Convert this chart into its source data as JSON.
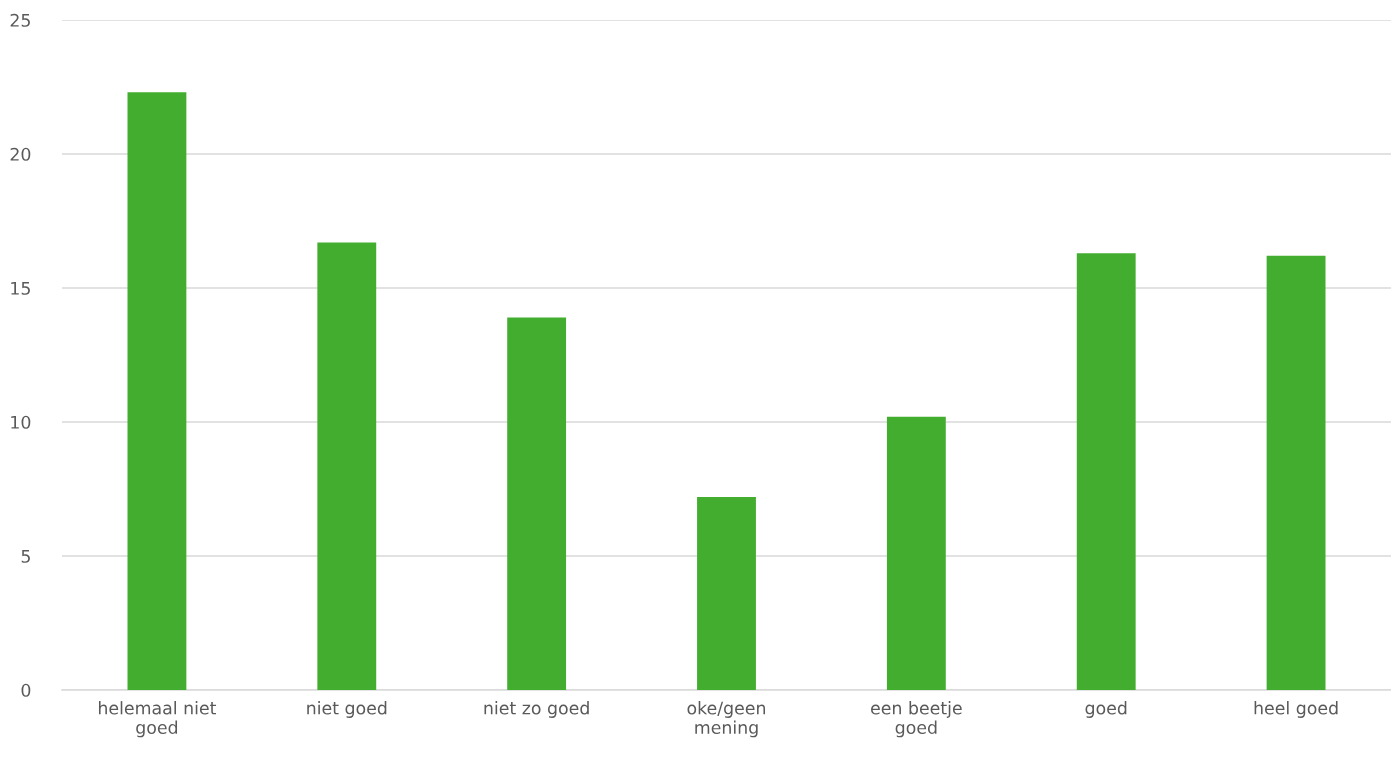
{
  "chart_data": {
    "type": "bar",
    "categories": [
      "helemaal niet\ngoed",
      "niet goed",
      "niet zo goed",
      "oke/geen\nmening",
      "een beetje\ngoed",
      "goed",
      "heel goed"
    ],
    "values": [
      22.3,
      16.7,
      13.9,
      7.2,
      10.2,
      16.3,
      16.2
    ],
    "color": "#43ad2f",
    "ylim": [
      0,
      25
    ],
    "yticks": [
      0,
      5,
      10,
      15,
      20,
      25
    ],
    "grid": "y"
  }
}
